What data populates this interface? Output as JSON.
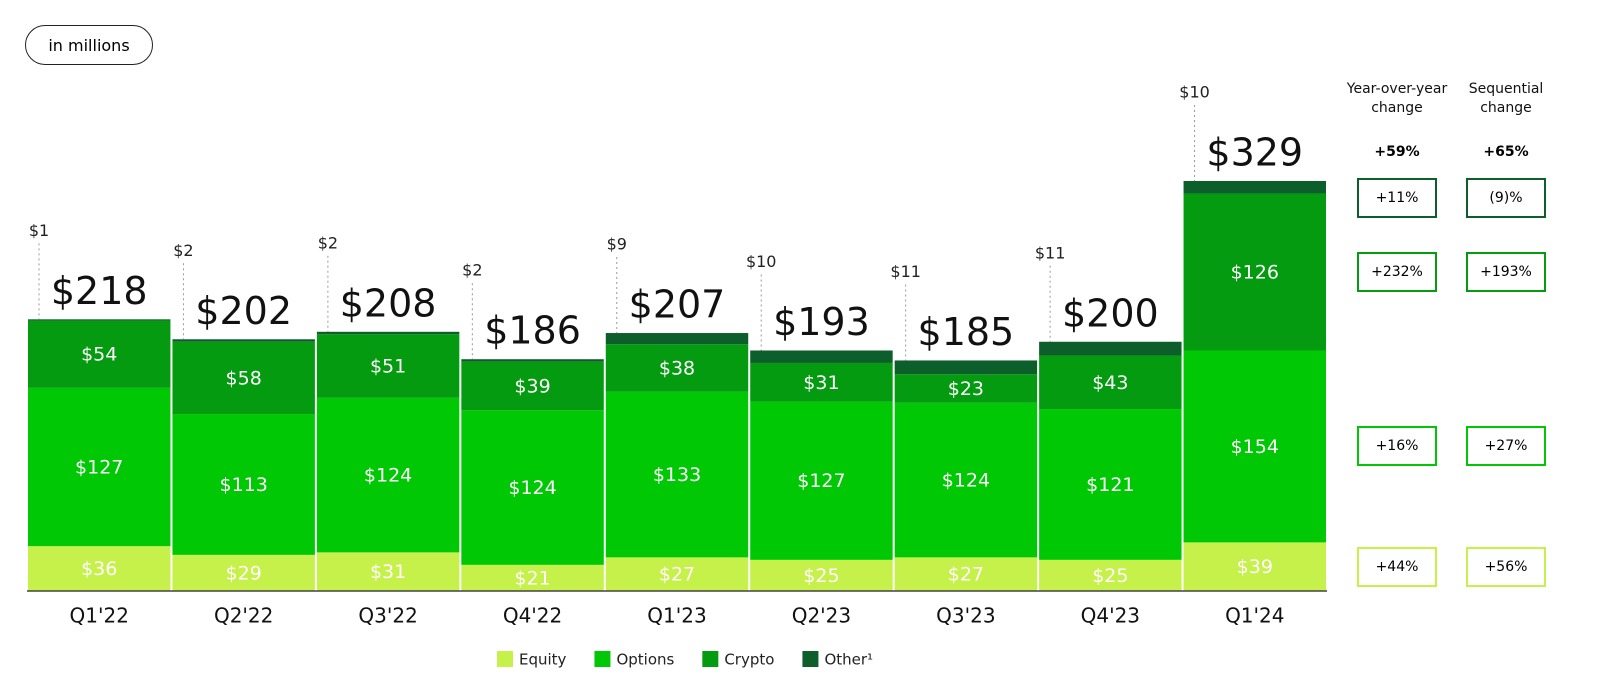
{
  "chart_data": {
    "type": "stacked-bar",
    "unit_note": "in millions",
    "categories": [
      "Q1'22",
      "Q2'22",
      "Q3'22",
      "Q4'22",
      "Q1'23",
      "Q2'23",
      "Q3'23",
      "Q4'23",
      "Q1'24"
    ],
    "series": [
      {
        "name": "Equity",
        "color": "#c6f04a",
        "values": [
          36,
          29,
          31,
          21,
          27,
          25,
          27,
          25,
          39
        ],
        "value_labels": [
          "$36",
          "$29",
          "$31",
          "$21",
          "$27",
          "$25",
          "$27",
          "$25",
          "$39"
        ]
      },
      {
        "name": "Options",
        "color": "#00c805",
        "values": [
          127,
          113,
          124,
          124,
          133,
          127,
          124,
          121,
          154
        ],
        "value_labels": [
          "$127",
          "$113",
          "$124",
          "$124",
          "$133",
          "$127",
          "$124",
          "$121",
          "$154"
        ]
      },
      {
        "name": "Crypto",
        "color": "#049b10",
        "values": [
          54,
          58,
          51,
          39,
          38,
          31,
          23,
          43,
          126
        ],
        "value_labels": [
          "$54",
          "$58",
          "$51",
          "$39",
          "$38",
          "$31",
          "$23",
          "$43",
          "$126"
        ]
      },
      {
        "name": "Other¹",
        "color": "#0c5e2b",
        "values": [
          1,
          2,
          2,
          2,
          9,
          10,
          11,
          11,
          10
        ],
        "value_labels": [
          "$1",
          "$2",
          "$2",
          "$2",
          "$9",
          "$10",
          "$11",
          "$11",
          "$10"
        ]
      }
    ],
    "totals": [
      218,
      202,
      208,
      186,
      207,
      193,
      185,
      200,
      329
    ],
    "total_labels": [
      "$218",
      "$202",
      "$208",
      "$186",
      "$207",
      "$193",
      "$185",
      "$200",
      "$329"
    ],
    "changes": {
      "headers": [
        "Year-over-year change",
        "Sequential change"
      ],
      "total": [
        "+59%",
        "+65%"
      ],
      "rows": [
        [
          "+44%",
          "+56%"
        ],
        [
          "+16%",
          "+27%"
        ],
        [
          "+232%",
          "+193%"
        ],
        [
          "+11%",
          "(9)%"
        ]
      ]
    }
  }
}
